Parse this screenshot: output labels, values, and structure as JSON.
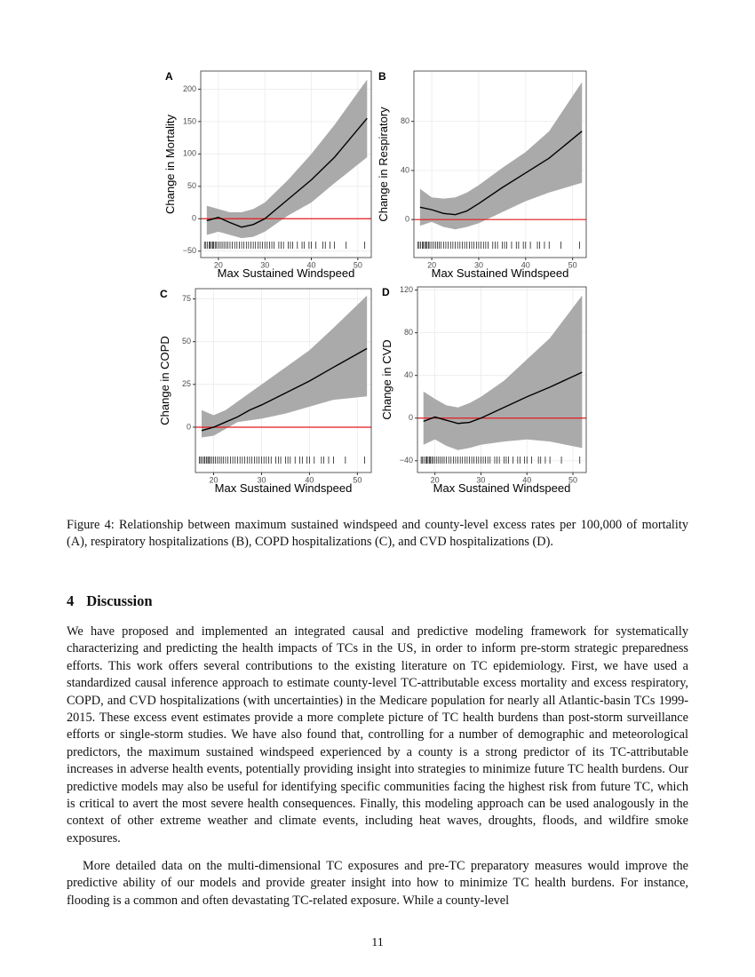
{
  "chart_data": [
    {
      "type": "line",
      "panel_label": "A",
      "xlabel": "Max Sustained Windspeed",
      "ylabel": "Change in Mortality",
      "x": [
        17.5,
        20,
        22.5,
        25,
        27.5,
        30,
        35,
        40,
        45,
        52
      ],
      "values": [
        -3,
        2,
        -6,
        -13,
        -9,
        0,
        30,
        60,
        95,
        155
      ],
      "band_upper": [
        20,
        15,
        10,
        10,
        15,
        25,
        60,
        100,
        145,
        215
      ],
      "band_lower": [
        -25,
        -20,
        -25,
        -30,
        -28,
        -20,
        5,
        25,
        55,
        95
      ],
      "rug": [
        17,
        17.3,
        17.6,
        18,
        18.2,
        18.5,
        18.8,
        19,
        19.3,
        19.6,
        20,
        20.4,
        20.8,
        21.2,
        21.6,
        22,
        22.5,
        23,
        23.5,
        24,
        24.5,
        25,
        25.5,
        26,
        26.5,
        27,
        27.5,
        28,
        28.5,
        29,
        29.5,
        30,
        30.5,
        31,
        31.5,
        32,
        33,
        33.5,
        34,
        35,
        35.5,
        36,
        37,
        38,
        38.5,
        39.5,
        40,
        41,
        42.5,
        43,
        44,
        45,
        47.5,
        51.5
      ],
      "hline": 0,
      "line_color": "#000000",
      "band_color": "#aaaaaa",
      "hline_color": "#e31a1c",
      "grid": true,
      "xlim": [
        16.2,
        52.9
      ],
      "xticks": [
        20,
        30,
        40,
        50
      ],
      "ylim": [
        -60,
        228
      ],
      "yticks": [
        {
          "value": -50,
          "label": "−50"
        },
        0,
        50,
        100,
        150,
        200
      ]
    },
    {
      "type": "line",
      "panel_label": "B",
      "xlabel": "Max Sustained Windspeed",
      "ylabel": "Change in Respiratory",
      "x": [
        17.5,
        20,
        22.5,
        25,
        27.5,
        30,
        35,
        40,
        45,
        52
      ],
      "values": [
        10,
        8,
        5,
        4,
        7,
        13,
        26,
        38,
        50,
        72
      ],
      "band_upper": [
        25,
        18,
        17,
        18,
        22,
        28,
        42,
        55,
        72,
        112
      ],
      "band_lower": [
        -5,
        -2,
        -6,
        -8,
        -6,
        -3,
        6,
        15,
        22,
        30
      ],
      "rug": [
        17,
        17.3,
        17.6,
        18,
        18.2,
        18.5,
        18.8,
        19,
        19.3,
        19.6,
        20,
        20.4,
        20.8,
        21.2,
        21.6,
        22,
        22.5,
        23,
        23.5,
        24,
        24.5,
        25,
        25.5,
        26,
        26.5,
        27,
        27.5,
        28,
        28.5,
        29,
        29.5,
        30,
        30.5,
        31,
        31.5,
        32,
        33,
        33.5,
        34,
        35,
        35.5,
        36,
        37,
        38,
        38.5,
        39.5,
        40,
        41,
        42.5,
        43,
        44,
        45,
        47.5,
        51.5
      ],
      "hline": 0,
      "line_color": "#000000",
      "band_color": "#aaaaaa",
      "hline_color": "#e31a1c",
      "grid": true,
      "xlim": [
        16.2,
        52.9
      ],
      "xticks": [
        20,
        30,
        40,
        50
      ],
      "ylim": [
        -31,
        121
      ],
      "yticks": [
        0,
        40,
        80
      ]
    },
    {
      "type": "line",
      "panel_label": "C",
      "xlabel": "Max Sustained Windspeed",
      "ylabel": "Change in COPD",
      "x": [
        17.5,
        20,
        22.5,
        25,
        27.5,
        30,
        35,
        40,
        45,
        52
      ],
      "values": [
        -2,
        0,
        3,
        6,
        10,
        13,
        20,
        27,
        35,
        46
      ],
      "band_upper": [
        10,
        7,
        10,
        15,
        20,
        25,
        35,
        45,
        58,
        77
      ],
      "band_lower": [
        -6,
        -5,
        -1,
        3,
        4,
        5,
        8,
        12,
        16,
        18
      ],
      "rug": [
        17,
        17.3,
        17.6,
        18,
        18.2,
        18.5,
        18.8,
        19,
        19.3,
        19.6,
        20,
        20.4,
        20.8,
        21.2,
        21.6,
        22,
        22.5,
        23,
        23.5,
        24,
        24.5,
        25,
        25.5,
        26,
        26.5,
        27,
        27.5,
        28,
        28.5,
        29,
        29.5,
        30,
        30.5,
        31,
        31.5,
        32,
        33,
        33.5,
        34,
        35,
        35.5,
        36,
        37,
        38,
        38.5,
        39.5,
        40,
        41,
        42.5,
        43,
        44,
        45,
        47.5,
        51.5
      ],
      "hline": 0,
      "line_color": "#000000",
      "band_color": "#aaaaaa",
      "hline_color": "#e31a1c",
      "grid": true,
      "xlim": [
        16.2,
        52.9
      ],
      "xticks": [
        20,
        30,
        40,
        50
      ],
      "ylim": [
        -26.5,
        81
      ],
      "yticks": [
        0,
        25,
        50,
        75
      ]
    },
    {
      "type": "line",
      "panel_label": "D",
      "xlabel": "Max Sustained Windspeed",
      "ylabel": "Change in CVD",
      "x": [
        17.5,
        20,
        22.5,
        25,
        27.5,
        30,
        35,
        40,
        45,
        52
      ],
      "values": [
        -3,
        1,
        -2,
        -5,
        -4,
        0,
        10,
        20,
        29,
        43
      ],
      "band_upper": [
        25,
        18,
        12,
        10,
        14,
        20,
        35,
        55,
        75,
        115
      ],
      "band_lower": [
        -25,
        -20,
        -26,
        -30,
        -28,
        -25,
        -22,
        -20,
        -22,
        -28
      ],
      "rug": [
        17,
        17.3,
        17.6,
        18,
        18.2,
        18.5,
        18.8,
        19,
        19.3,
        19.6,
        20,
        20.4,
        20.8,
        21.2,
        21.6,
        22,
        22.5,
        23,
        23.5,
        24,
        24.5,
        25,
        25.5,
        26,
        26.5,
        27,
        27.5,
        28,
        28.5,
        29,
        29.5,
        30,
        30.5,
        31,
        31.5,
        32,
        33,
        33.5,
        34,
        35,
        35.5,
        36,
        37,
        38,
        38.5,
        39.5,
        40,
        41,
        42.5,
        43,
        44,
        45,
        47.5,
        51.5
      ],
      "hline": 0,
      "line_color": "#000000",
      "band_color": "#aaaaaa",
      "hline_color": "#e31a1c",
      "grid": true,
      "xlim": [
        16.2,
        52.9
      ],
      "xticks": [
        20,
        30,
        40,
        50
      ],
      "ylim": [
        -51,
        123
      ],
      "yticks": [
        {
          "value": -40,
          "label": "−40"
        },
        0,
        40,
        80,
        120
      ]
    }
  ],
  "caption": "Figure 4: Relationship between maximum sustained windspeed and county-level excess rates per 100,000 of mortality (A), respiratory hospitalizations (B), COPD hospitalizations (C), and CVD hospitalizations (D).",
  "section": {
    "number": "4",
    "title": "Discussion"
  },
  "paragraphs": [
    "We have proposed and implemented an integrated causal and predictive modeling framework for systematically characterizing and predicting the health impacts of TCs in the US, in order to inform pre-storm strategic preparedness efforts. This work offers several contributions to the existing literature on TC epidemiology. First, we have used a standardized causal inference approach to estimate county-level TC-attributable excess mortality and excess respiratory, COPD, and CVD hospitalizations (with uncertainties) in the Medicare population for nearly all Atlantic-basin TCs 1999-2015. These excess event estimates provide a more complete picture of TC health burdens than post-storm surveillance efforts or single-storm studies. We have also found that, controlling for a number of demographic and meteorological predictors, the maximum sustained windspeed experienced by a county is a strong predictor of its TC-attributable increases in adverse health events, potentially providing insight into strategies to minimize future TC health burdens. Our predictive models may also be useful for identifying specific communities facing the highest risk from future TC, which is critical to avert the most severe health consequences. Finally, this modeling approach can be used analogously in the context of other extreme weather and climate events, including heat waves, droughts, floods, and wildfire smoke exposures.",
    "More detailed data on the multi-dimensional TC exposures and pre-TC preparatory measures would improve the predictive ability of our models and provide greater insight into how to minimize TC health burdens. For instance, flooding is a common and often devastating TC-related exposure. While a county-level"
  ],
  "page_number": "11"
}
